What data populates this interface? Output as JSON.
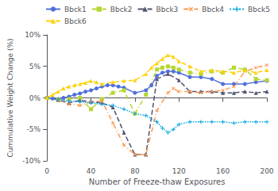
{
  "chart_data": {
    "type": "line",
    "xlabel": "Number of Freeze-thaw Exposures",
    "ylabel": "Cummulative Weight Change (%)",
    "xlim": [
      0,
      200
    ],
    "xticks": [
      0,
      40,
      80,
      120,
      160,
      200
    ],
    "ylim": [
      -0.1,
      0.1
    ],
    "yticks": [
      {
        "value": -0.1,
        "label": "-10%"
      },
      {
        "value": -0.05,
        "label": "-5%"
      },
      {
        "value": 0.0,
        "label": "0%"
      },
      {
        "value": 0.05,
        "label": "5%"
      },
      {
        "value": 0.1,
        "label": "10%"
      }
    ],
    "grid": false,
    "legend": "upper left",
    "series": [
      {
        "name": "Bbck1",
        "marker": "circle",
        "line_style": "solid",
        "x": [
          0,
          5,
          10,
          15,
          20,
          25,
          30,
          35,
          40,
          45,
          50,
          55,
          60,
          65,
          70,
          80,
          90,
          95,
          100,
          105,
          110,
          115,
          120,
          130,
          140,
          150,
          160,
          170,
          180,
          190,
          200
        ],
        "values": [
          0.0,
          -0.001,
          -0.002,
          0.0,
          0.002,
          0.005,
          0.007,
          0.01,
          0.012,
          0.015,
          0.018,
          0.02,
          0.02,
          0.018,
          0.016,
          0.008,
          0.012,
          0.02,
          0.035,
          0.04,
          0.042,
          0.042,
          0.04,
          0.033,
          0.033,
          0.03,
          0.022,
          0.022,
          0.022,
          0.025,
          0.027
        ]
      },
      {
        "name": "Bbck2",
        "marker": "square",
        "line_style": "dashdot",
        "x": [
          0,
          10,
          20,
          30,
          40,
          50,
          60,
          70,
          80,
          90,
          100,
          105,
          110,
          115,
          120,
          130,
          140,
          150,
          160,
          170,
          180,
          190,
          200
        ],
        "values": [
          0.0,
          -0.003,
          -0.002,
          0.0,
          -0.018,
          -0.002,
          0.008,
          0.012,
          -0.025,
          0.005,
          0.045,
          0.048,
          0.05,
          0.048,
          0.045,
          0.04,
          0.038,
          0.042,
          0.04,
          0.048,
          0.045,
          0.03,
          0.028
        ]
      },
      {
        "name": "Bbck3",
        "marker": "triangle",
        "line_style": "dashed",
        "x": [
          0,
          10,
          20,
          30,
          40,
          50,
          60,
          70,
          80,
          90,
          100,
          110,
          120,
          130,
          140,
          150,
          160,
          170,
          180,
          190,
          200
        ],
        "values": [
          0.0,
          -0.003,
          -0.008,
          -0.004,
          -0.006,
          -0.008,
          -0.015,
          -0.055,
          -0.09,
          -0.09,
          0.03,
          0.038,
          0.028,
          0.01,
          0.01,
          0.01,
          0.008,
          0.008,
          0.01,
          0.008,
          0.01
        ]
      },
      {
        "name": "Bbck4",
        "marker": "x",
        "line_style": "dashdot",
        "x": [
          0,
          10,
          20,
          30,
          40,
          50,
          60,
          70,
          80,
          90,
          100,
          110,
          115,
          120,
          130,
          140,
          150,
          160,
          170,
          180,
          190,
          200
        ],
        "values": [
          0.0,
          -0.004,
          -0.01,
          -0.012,
          -0.006,
          -0.005,
          -0.04,
          -0.075,
          -0.09,
          -0.09,
          -0.02,
          0.008,
          0.015,
          0.01,
          0.01,
          0.008,
          0.01,
          0.012,
          0.018,
          0.042,
          0.048,
          0.052
        ]
      },
      {
        "name": "Bbck5",
        "marker": "plus",
        "line_style": "dotted",
        "x": [
          0,
          10,
          20,
          30,
          40,
          50,
          60,
          70,
          80,
          90,
          100,
          105,
          110,
          115,
          120,
          130,
          140,
          150,
          160,
          170,
          180,
          190,
          200
        ],
        "values": [
          0.0,
          -0.003,
          -0.005,
          -0.006,
          -0.008,
          -0.01,
          -0.012,
          -0.018,
          -0.025,
          -0.028,
          -0.038,
          -0.048,
          -0.055,
          -0.05,
          -0.042,
          -0.038,
          -0.038,
          -0.038,
          -0.038,
          -0.04,
          -0.038,
          -0.038,
          -0.038
        ]
      },
      {
        "name": "Bbck6",
        "marker": "triangle",
        "line_style": "dashed",
        "x": [
          0,
          5,
          10,
          15,
          20,
          25,
          30,
          35,
          40,
          45,
          50,
          60,
          70,
          80,
          90,
          95,
          100,
          105,
          110,
          115,
          120,
          130,
          140,
          150,
          160,
          170,
          180,
          190,
          200
        ],
        "values": [
          0.0,
          0.005,
          0.01,
          0.015,
          0.018,
          0.02,
          0.022,
          0.024,
          0.027,
          0.025,
          0.022,
          0.025,
          0.027,
          0.028,
          0.038,
          0.048,
          0.055,
          0.062,
          0.068,
          0.065,
          0.058,
          0.05,
          0.042,
          0.044,
          0.042,
          0.04,
          0.044,
          0.04,
          0.044
        ]
      }
    ]
  }
}
